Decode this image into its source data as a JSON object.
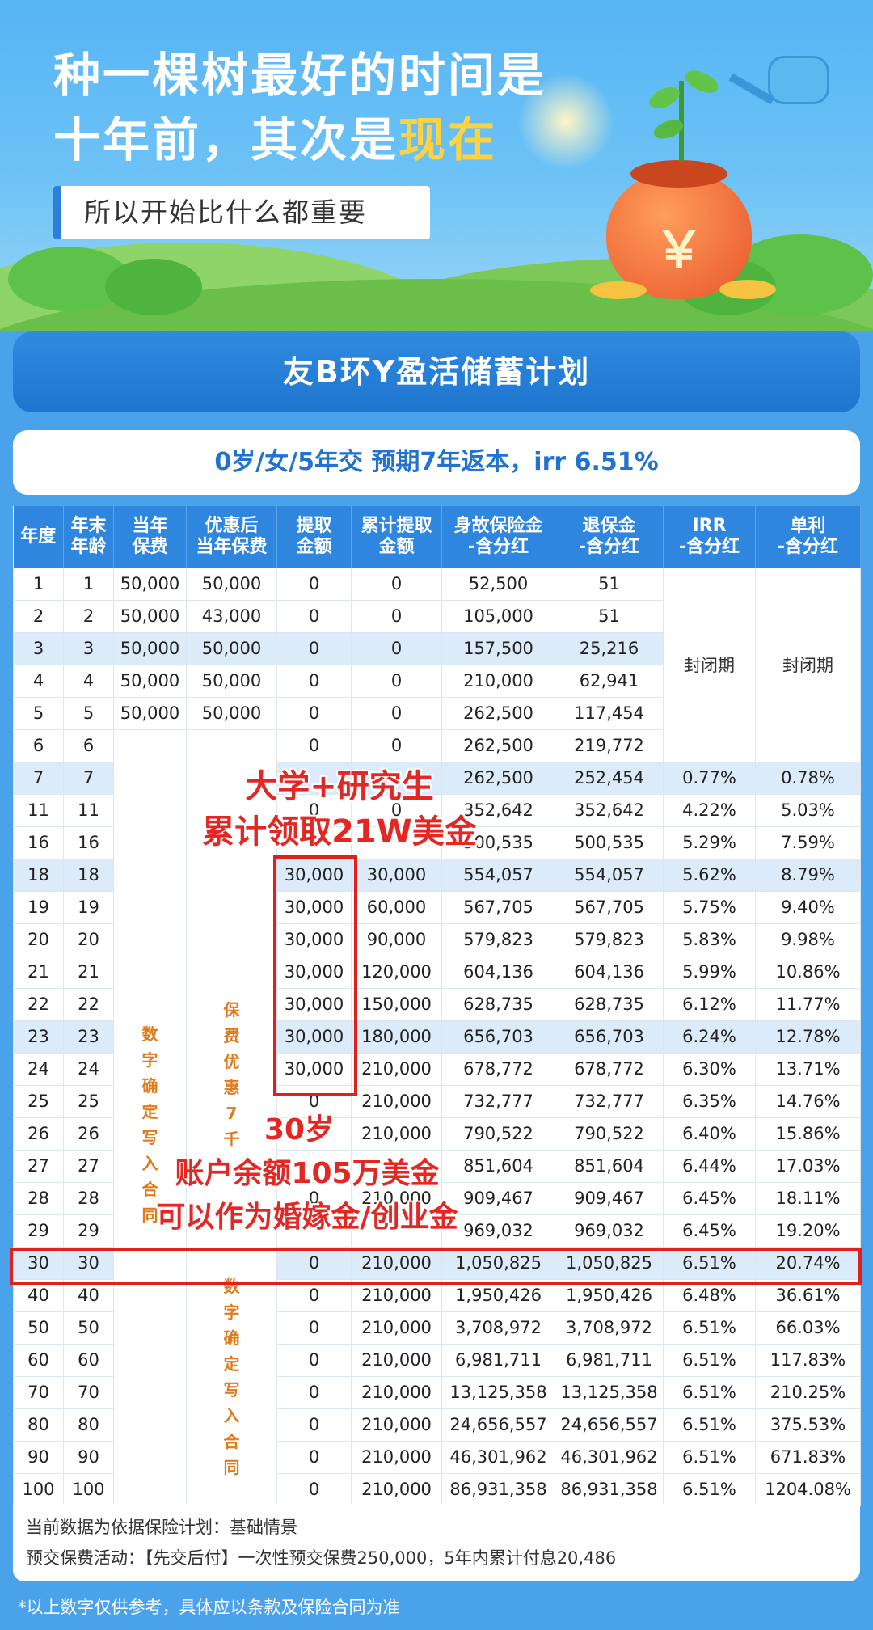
{
  "hero": {
    "line1": "种一棵树最好的时间是",
    "line2_prefix": "十年前，其次是",
    "line2_highlight": "现在",
    "sub": "所以开始比什么都重要",
    "bag_symbol": "￥"
  },
  "banner": {
    "title": "友B环Y盈活储蓄计划"
  },
  "subtitle": "0岁/女/5年交  预期7年返本，irr 6.51%",
  "table": {
    "headers": [
      [
        "年度"
      ],
      [
        "年末",
        "年龄"
      ],
      [
        "当年",
        "保费"
      ],
      [
        "优惠后",
        "当年保费"
      ],
      [
        "提取",
        "金额"
      ],
      [
        "累计提取",
        "金额"
      ],
      [
        "身故保险金",
        "-含分红"
      ],
      [
        "退保金",
        "-含分红"
      ],
      [
        "IRR",
        "-含分红"
      ],
      [
        "单利",
        "-含分红"
      ]
    ],
    "rows": [
      [
        "1",
        "1",
        "50,000",
        "50,000",
        "0",
        "0",
        "52,500",
        "51",
        "",
        ""
      ],
      [
        "2",
        "2",
        "50,000",
        "43,000",
        "0",
        "0",
        "105,000",
        "51",
        "",
        ""
      ],
      [
        "3",
        "3",
        "50,000",
        "50,000",
        "0",
        "0",
        "157,500",
        "25,216",
        "",
        ""
      ],
      [
        "4",
        "4",
        "50,000",
        "50,000",
        "0",
        "0",
        "210,000",
        "62,941",
        "",
        ""
      ],
      [
        "5",
        "5",
        "50,000",
        "50,000",
        "0",
        "0",
        "262,500",
        "117,454",
        "",
        ""
      ],
      [
        "6",
        "6",
        "",
        "",
        "0",
        "0",
        "262,500",
        "219,772",
        "",
        ""
      ],
      [
        "7",
        "7",
        "",
        "",
        "",
        "",
        "262,500",
        "252,454",
        "0.77%",
        "0.78%"
      ],
      [
        "11",
        "11",
        "",
        "",
        "0",
        "0",
        "352,642",
        "352,642",
        "4.22%",
        "5.03%"
      ],
      [
        "16",
        "16",
        "",
        "",
        "",
        "",
        "500,535",
        "500,535",
        "5.29%",
        "7.59%"
      ],
      [
        "18",
        "18",
        "",
        "",
        "30,000",
        "30,000",
        "554,057",
        "554,057",
        "5.62%",
        "8.79%"
      ],
      [
        "19",
        "19",
        "",
        "",
        "30,000",
        "60,000",
        "567,705",
        "567,705",
        "5.75%",
        "9.40%"
      ],
      [
        "20",
        "20",
        "",
        "",
        "30,000",
        "90,000",
        "579,823",
        "579,823",
        "5.83%",
        "9.98%"
      ],
      [
        "21",
        "21",
        "",
        "",
        "30,000",
        "120,000",
        "604,136",
        "604,136",
        "5.99%",
        "10.86%"
      ],
      [
        "22",
        "22",
        "",
        "",
        "30,000",
        "150,000",
        "628,735",
        "628,735",
        "6.12%",
        "11.77%"
      ],
      [
        "23",
        "23",
        "",
        "",
        "30,000",
        "180,000",
        "656,703",
        "656,703",
        "6.24%",
        "12.78%"
      ],
      [
        "24",
        "24",
        "",
        "",
        "30,000",
        "210,000",
        "678,772",
        "678,772",
        "6.30%",
        "13.71%"
      ],
      [
        "25",
        "25",
        "",
        "",
        "0",
        "210,000",
        "732,777",
        "732,777",
        "6.35%",
        "14.76%"
      ],
      [
        "26",
        "26",
        "",
        "",
        "",
        "210,000",
        "790,522",
        "790,522",
        "6.40%",
        "15.86%"
      ],
      [
        "27",
        "27",
        "",
        "",
        "",
        "",
        "851,604",
        "851,604",
        "6.44%",
        "17.03%"
      ],
      [
        "28",
        "28",
        "",
        "",
        "0",
        "210,000",
        "909,467",
        "909,467",
        "6.45%",
        "18.11%"
      ],
      [
        "29",
        "29",
        "",
        "",
        "",
        "",
        "969,032",
        "969,032",
        "6.45%",
        "19.20%"
      ],
      [
        "30",
        "30",
        "",
        "",
        "0",
        "210,000",
        "1,050,825",
        "1,050,825",
        "6.51%",
        "20.74%"
      ],
      [
        "40",
        "40",
        "",
        "",
        "0",
        "210,000",
        "1,950,426",
        "1,950,426",
        "6.48%",
        "36.61%"
      ],
      [
        "50",
        "50",
        "",
        "",
        "0",
        "210,000",
        "3,708,972",
        "3,708,972",
        "6.51%",
        "66.03%"
      ],
      [
        "60",
        "60",
        "",
        "",
        "0",
        "210,000",
        "6,981,711",
        "6,981,711",
        "6.51%",
        "117.83%"
      ],
      [
        "70",
        "70",
        "",
        "",
        "0",
        "210,000",
        "13,125,358",
        "13,125,358",
        "6.51%",
        "210.25%"
      ],
      [
        "80",
        "80",
        "",
        "",
        "0",
        "210,000",
        "24,656,557",
        "24,656,557",
        "6.51%",
        "375.53%"
      ],
      [
        "90",
        "90",
        "",
        "",
        "0",
        "210,000",
        "46,301,962",
        "46,301,962",
        "6.51%",
        "671.83%"
      ],
      [
        "100",
        "100",
        "",
        "",
        "0",
        "210,000",
        "86,931,358",
        "86,931,358",
        "6.51%",
        "1204.08%"
      ]
    ],
    "shaded_rows": [
      2,
      6,
      9,
      14,
      21
    ],
    "closed_label": "封闭期",
    "merged_col2": "数字确定写入合同",
    "merged_col3_top": "保费优惠7千",
    "merged_col3_bottom": "数字确定写入合同"
  },
  "annotations": {
    "line1": "大学+研究生",
    "line2": "累计领取21W美金",
    "line3": "30岁",
    "line4": "账户余额105万美金",
    "line5": "可以作为婚嫁金/创业金"
  },
  "notes": {
    "line1": "当前数据为依据保险计划：基础情景",
    "line2": "预交保费活动：【先交后付】一次性预交保费250,000，5年内累计付息20,486"
  },
  "disclaimer": "*以上数字仅供参考，具体应以条款及保险合同为准",
  "colors": {
    "accent_blue": "#2f86df",
    "annotation_red": "#e32724",
    "highlight_yellow": "#ffd23f"
  }
}
